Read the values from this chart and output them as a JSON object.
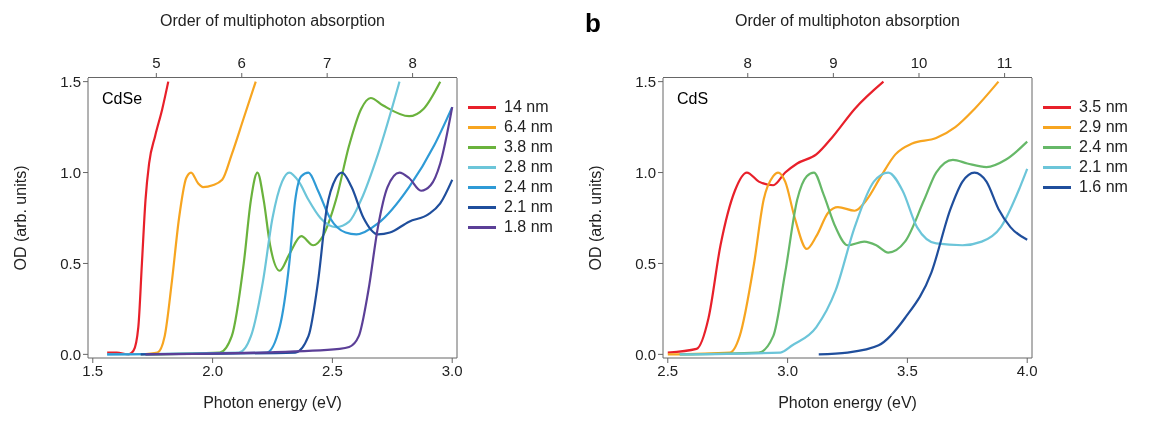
{
  "chart_data": [
    {
      "type": "line",
      "annotations": [
        "CdSe"
      ],
      "xlabel": "Photon energy (eV)",
      "ylabel": "OD (arb. units)",
      "x2label": "Order of multiphoton absorption",
      "xlim": [
        1.48,
        3.02
      ],
      "xticks": [
        {
          "value": 1.5,
          "label": "1.5"
        },
        {
          "value": 2,
          "label": "2.0"
        },
        {
          "value": 2.5,
          "label": "2.5"
        },
        {
          "value": 3,
          "label": "3.0"
        }
      ],
      "x2lim": [
        4.2,
        8.52
      ],
      "x2ticks": [
        5,
        6,
        7,
        8
      ],
      "ylim": [
        -0.02,
        1.52
      ],
      "yticks": [
        {
          "value": 0,
          "label": "0.0"
        },
        {
          "value": 0.5,
          "label": "0.5"
        },
        {
          "value": 1,
          "label": "1.0"
        },
        {
          "value": 1.5,
          "label": "1.5"
        }
      ],
      "grid": false,
      "legend": "right",
      "marker": "none",
      "line_style": "solid",
      "series": [
        {
          "name": "14 nm",
          "color": "#e8202a",
          "x": [
            1.56,
            1.6,
            1.65,
            1.67,
            1.69,
            1.705,
            1.72,
            1.735,
            1.76,
            1.79,
            1.815
          ],
          "values": [
            0.01,
            0.01,
            0,
            0.02,
            0.15,
            0.5,
            0.85,
            1.05,
            1.2,
            1.35,
            1.5
          ]
        },
        {
          "name": "6.4 nm",
          "color": "#f7a520",
          "x": [
            1.7,
            1.77,
            1.8,
            1.83,
            1.86,
            1.89,
            1.91,
            1.94,
            1.96,
            2.0,
            2.04,
            2.08,
            2.13,
            2.18
          ],
          "values": [
            0,
            0.01,
            0.1,
            0.4,
            0.75,
            0.97,
            1.0,
            0.94,
            0.92,
            0.93,
            0.96,
            1.1,
            1.3,
            1.5
          ]
        },
        {
          "name": "3.8 nm",
          "color": "#6ab23c",
          "x": [
            1.72,
            2.03,
            2.08,
            2.13,
            2.16,
            2.187,
            2.213,
            2.24,
            2.28,
            2.32,
            2.37,
            2.42,
            2.46,
            2.515,
            2.57,
            2.62,
            2.66,
            2.71,
            2.82,
            2.88,
            2.95
          ],
          "values": [
            0,
            0.01,
            0.1,
            0.5,
            0.85,
            1.0,
            0.85,
            0.6,
            0.46,
            0.55,
            0.65,
            0.6,
            0.65,
            0.85,
            1.15,
            1.35,
            1.41,
            1.37,
            1.31,
            1.35,
            1.5
          ]
        },
        {
          "name": "2.8 nm",
          "color": "#6cc5d9",
          "x": [
            1.56,
            2.11,
            2.16,
            2.21,
            2.25,
            2.29,
            2.32,
            2.36,
            2.4,
            2.45,
            2.515,
            2.57,
            2.62,
            2.69,
            2.78
          ],
          "values": [
            0,
            0.01,
            0.1,
            0.4,
            0.75,
            0.95,
            1.0,
            0.95,
            0.85,
            0.75,
            0.7,
            0.73,
            0.85,
            1.1,
            1.5
          ]
        },
        {
          "name": "2.4 nm",
          "color": "#2e9ad6",
          "x": [
            1.56,
            2.226,
            2.28,
            2.32,
            2.345,
            2.37,
            2.4,
            2.44,
            2.49,
            2.555,
            2.6,
            2.69,
            2.82,
            2.925,
            3.0
          ],
          "values": [
            0,
            0.01,
            0.15,
            0.5,
            0.85,
            0.98,
            1.0,
            0.9,
            0.75,
            0.67,
            0.66,
            0.72,
            0.92,
            1.15,
            1.36
          ]
        },
        {
          "name": "2.1 nm",
          "color": "#1f4e9c",
          "x": [
            1.7,
            2.345,
            2.4,
            2.44,
            2.476,
            2.515,
            2.54,
            2.58,
            2.63,
            2.69,
            2.74,
            2.82,
            2.9,
            2.95,
            3.0
          ],
          "values": [
            0,
            0.01,
            0.1,
            0.4,
            0.8,
            0.97,
            1.0,
            0.92,
            0.75,
            0.66,
            0.67,
            0.73,
            0.77,
            0.83,
            0.96
          ]
        },
        {
          "name": "1.8 nm",
          "color": "#5b3f97",
          "x": [
            1.72,
            2.2,
            2.53,
            2.57,
            2.61,
            2.65,
            2.69,
            2.73,
            2.78,
            2.82,
            2.87,
            2.91,
            2.95,
            3.0
          ],
          "values": [
            0,
            0.01,
            0.03,
            0.04,
            0.1,
            0.35,
            0.7,
            0.92,
            1.0,
            0.97,
            0.9,
            0.93,
            1.05,
            1.36
          ]
        }
      ]
    },
    {
      "type": "line",
      "title": "b",
      "annotations": [
        "CdS"
      ],
      "xlabel": "Photon energy (eV)",
      "ylabel": "OD (arb. units)",
      "x2label": "Order of multiphoton absorption",
      "xlim": [
        2.48,
        4.02
      ],
      "xticks": [
        2.5,
        {
          "value": 3,
          "label": "3.0"
        },
        3.5,
        {
          "value": 4,
          "label": "4.0"
        }
      ],
      "x2lim": [
        7.01,
        11.32
      ],
      "x2ticks": [
        8,
        9,
        10,
        11
      ],
      "ylim": [
        -0.02,
        1.52
      ],
      "yticks": [
        {
          "value": 0,
          "label": "0.0"
        },
        {
          "value": 0.5,
          "label": "0.5"
        },
        {
          "value": 1,
          "label": "1.0"
        },
        {
          "value": 1.5,
          "label": "1.5"
        }
      ],
      "grid": false,
      "legend": "right",
      "marker": "none",
      "line_style": "solid",
      "series": [
        {
          "name": "3.5 nm",
          "color": "#e8202a",
          "x": [
            2.5,
            2.62,
            2.67,
            2.72,
            2.78,
            2.83,
            2.88,
            2.94,
            2.99,
            3.04,
            3.12,
            3.19,
            3.28,
            3.4
          ],
          "values": [
            0.01,
            0.03,
            0.2,
            0.6,
            0.9,
            1.0,
            0.95,
            0.93,
            1.0,
            1.05,
            1.1,
            1.2,
            1.35,
            1.5
          ]
        },
        {
          "name": "2.9 nm",
          "color": "#f7a520",
          "x": [
            2.5,
            2.76,
            2.8,
            2.86,
            2.9,
            2.94,
            2.96,
            2.99,
            3.03,
            3.08,
            3.12,
            3.17,
            3.21,
            3.28,
            3.33,
            3.39,
            3.45,
            3.52,
            3.62,
            3.7,
            3.78,
            3.88
          ],
          "values": [
            0,
            0.01,
            0.1,
            0.5,
            0.85,
            0.98,
            1.0,
            0.95,
            0.75,
            0.58,
            0.65,
            0.78,
            0.81,
            0.79,
            0.85,
            0.98,
            1.1,
            1.16,
            1.19,
            1.25,
            1.35,
            1.5
          ]
        },
        {
          "name": "2.4 nm",
          "color": "#66b868",
          "x": [
            2.55,
            2.88,
            2.94,
            2.99,
            3.04,
            3.08,
            3.11,
            3.15,
            3.2,
            3.25,
            3.32,
            3.37,
            3.42,
            3.49,
            3.57,
            3.62,
            3.69,
            3.75,
            3.83,
            3.91,
            4.0
          ],
          "values": [
            0,
            0.01,
            0.1,
            0.45,
            0.85,
            0.98,
            1.0,
            0.88,
            0.7,
            0.6,
            0.62,
            0.6,
            0.56,
            0.62,
            0.85,
            1.0,
            1.07,
            1.05,
            1.03,
            1.07,
            1.17
          ]
        },
        {
          "name": "2.1 nm",
          "color": "#6cc5d9",
          "x": [
            2.55,
            2.97,
            3.02,
            3.12,
            3.2,
            3.28,
            3.36,
            3.42,
            3.48,
            3.54,
            3.62,
            3.73,
            3.81,
            3.89,
            3.97,
            4.0
          ],
          "values": [
            0,
            0.01,
            0.05,
            0.15,
            0.35,
            0.7,
            0.95,
            1.0,
            0.9,
            0.7,
            0.61,
            0.6,
            0.62,
            0.7,
            0.92,
            1.02
          ]
        },
        {
          "name": "1.6 nm",
          "color": "#1f4e9c",
          "x": [
            3.13,
            3.25,
            3.38,
            3.49,
            3.6,
            3.68,
            3.73,
            3.78,
            3.83,
            3.88,
            3.93,
            4.0
          ],
          "values": [
            0,
            0.01,
            0.05,
            0.2,
            0.45,
            0.8,
            0.95,
            1.0,
            0.95,
            0.8,
            0.7,
            0.63
          ]
        }
      ]
    }
  ]
}
